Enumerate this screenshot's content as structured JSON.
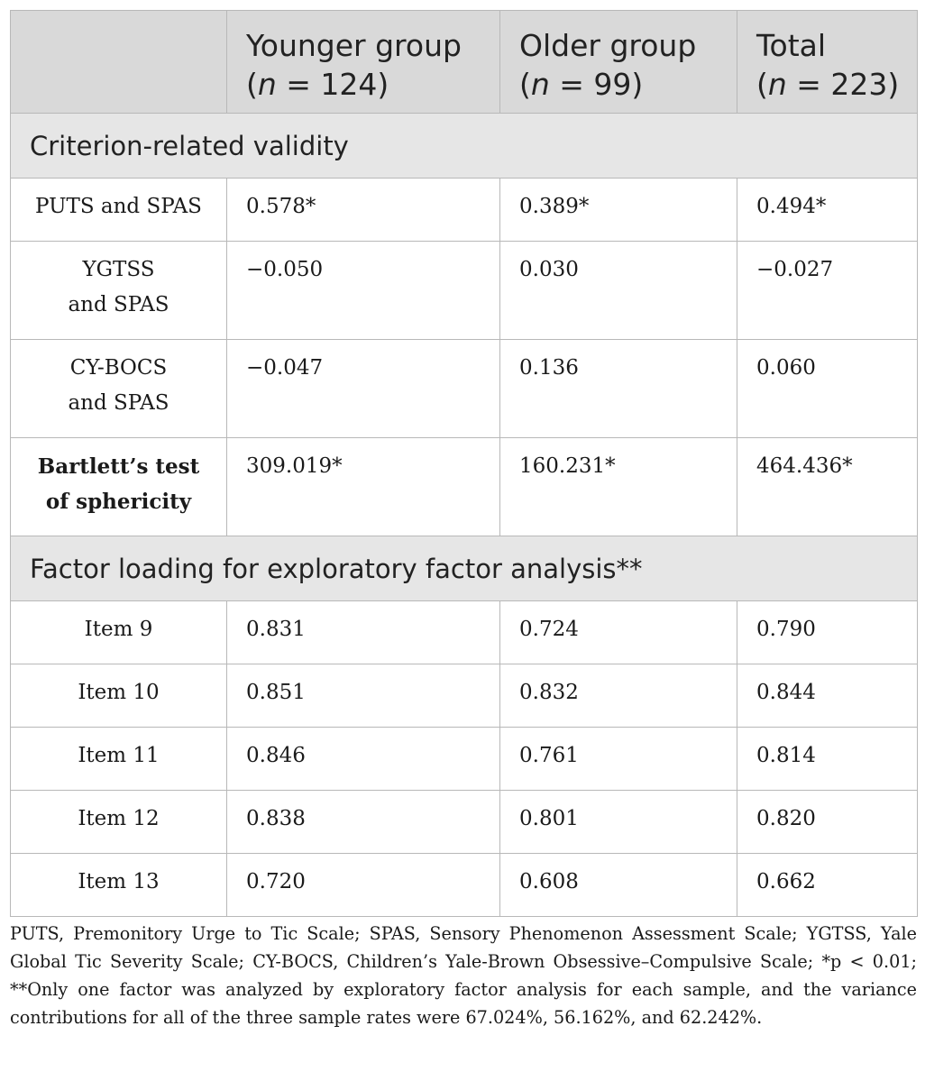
{
  "header": {
    "columns": [
      {
        "name": "Younger group",
        "n_prefix": "(",
        "n_var": "n",
        "n_rest": " = 124)"
      },
      {
        "name": "Older group",
        "n_prefix": "(",
        "n_var": "n",
        "n_rest": " = 99)"
      },
      {
        "name": "Total",
        "n_prefix": "(",
        "n_var": "n",
        "n_rest": " = 223)"
      }
    ]
  },
  "sections": {
    "criterion": "Criterion-related validity",
    "factor": "Factor loading for exploratory factor analysis**"
  },
  "criterion_rows": [
    {
      "label_lines": [
        "PUTS and SPAS"
      ],
      "values": [
        "0.578*",
        "0.389*",
        "0.494*"
      ]
    },
    {
      "label_lines": [
        "YGTSS",
        "and SPAS"
      ],
      "values": [
        "−0.050",
        "0.030",
        "−0.027"
      ]
    },
    {
      "label_lines": [
        "CY-BOCS",
        "and SPAS"
      ],
      "values": [
        "−0.047",
        "0.136",
        "0.060"
      ]
    },
    {
      "label_lines": [
        "Bartlett’s test",
        "of sphericity"
      ],
      "values": [
        "309.019*",
        "160.231*",
        "464.436*"
      ]
    }
  ],
  "factor_rows": [
    {
      "label": "Item 9",
      "values": [
        "0.831",
        "0.724",
        "0.790"
      ]
    },
    {
      "label": "Item 10",
      "values": [
        "0.851",
        "0.832",
        "0.844"
      ]
    },
    {
      "label": "Item 11",
      "values": [
        "0.846",
        "0.761",
        "0.814"
      ]
    },
    {
      "label": "Item 12",
      "values": [
        "0.838",
        "0.801",
        "0.820"
      ]
    },
    {
      "label": "Item 13",
      "values": [
        "0.720",
        "0.608",
        "0.662"
      ]
    }
  ],
  "footnote": "PUTS, Premonitory Urge to Tic Scale; SPAS, Sensory Phenomenon Assessment Scale; YGTSS, Yale Global Tic Severity Scale; CY-BOCS, Children’s Yale-Brown Obsessive–Compulsive Scale; *p < 0.01; **Only one factor was analyzed by exploratory factor analysis for each sample, and the variance contributions for all of the three sample rates were 67.024%, 56.162%, and 62.242%."
}
